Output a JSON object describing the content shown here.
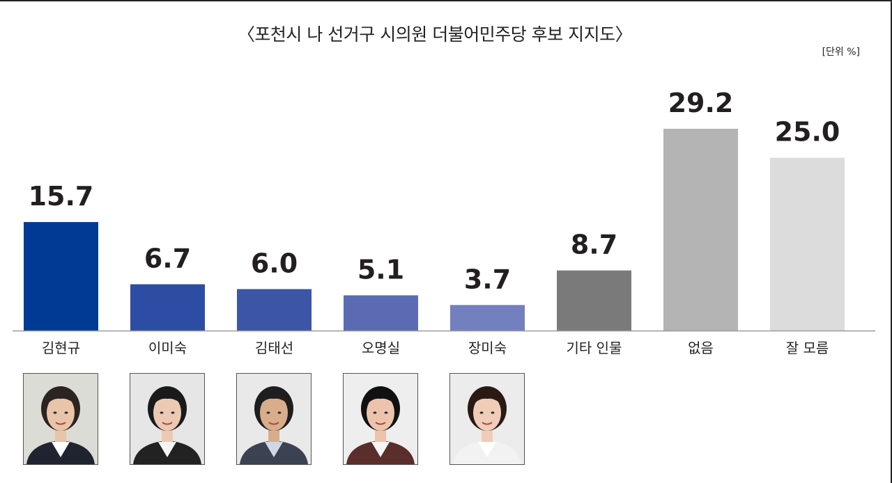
{
  "title": "〈포천시 나 선거구 시의원 더불어민주당 후보 지지도〉",
  "unit": "[단위 %]",
  "chart_data": {
    "type": "bar",
    "title": "〈포천시 나 선거구 시의원 더불어민주당 후보 지지도〉",
    "xlabel": "",
    "ylabel": "",
    "ylim": [
      0,
      30
    ],
    "grid": false,
    "categories": [
      "김현규",
      "이미숙",
      "김태선",
      "오명실",
      "장미숙",
      "기타 인물",
      "없음",
      "잘 모름"
    ],
    "values": [
      15.7,
      6.7,
      6.0,
      5.1,
      3.7,
      8.7,
      29.2,
      25.0
    ],
    "value_labels": [
      "15.7",
      "6.7",
      "6.0",
      "5.1",
      "3.7",
      "8.7",
      "29.2",
      "25.0"
    ],
    "colors": [
      "#003a94",
      "#2c4da3",
      "#3d55a6",
      "#5b6bb3",
      "#7280bf",
      "#7a7a7a",
      "#b4b4b4",
      "#dcdcdc"
    ]
  },
  "photos": [
    {
      "name": "김현규",
      "bg": "#dcdcd6",
      "hair": "#2b2420",
      "skin": "#e8c4a8",
      "suit": "#1f2430",
      "shirt": "#ffffff"
    },
    {
      "name": "이미숙",
      "bg": "#e6e6e6",
      "hair": "#1a1a1a",
      "skin": "#ecc9b3",
      "suit": "#222222",
      "shirt": "#f4f4f4"
    },
    {
      "name": "김태선",
      "bg": "#e9e9e9",
      "hair": "#1e1e1e",
      "skin": "#d8ad8c",
      "suit": "#3b4252",
      "shirt": "#cfd8e6"
    },
    {
      "name": "오명실",
      "bg": "#eeeeee",
      "hair": "#111111",
      "skin": "#ecc4ad",
      "suit": "#5a2e2a",
      "shirt": "#f6f6f6"
    },
    {
      "name": "장미숙",
      "bg": "#ececec",
      "hair": "#2a1a14",
      "skin": "#f0cdb8",
      "suit": "#f2f2f2",
      "shirt": "#ffffff"
    }
  ]
}
